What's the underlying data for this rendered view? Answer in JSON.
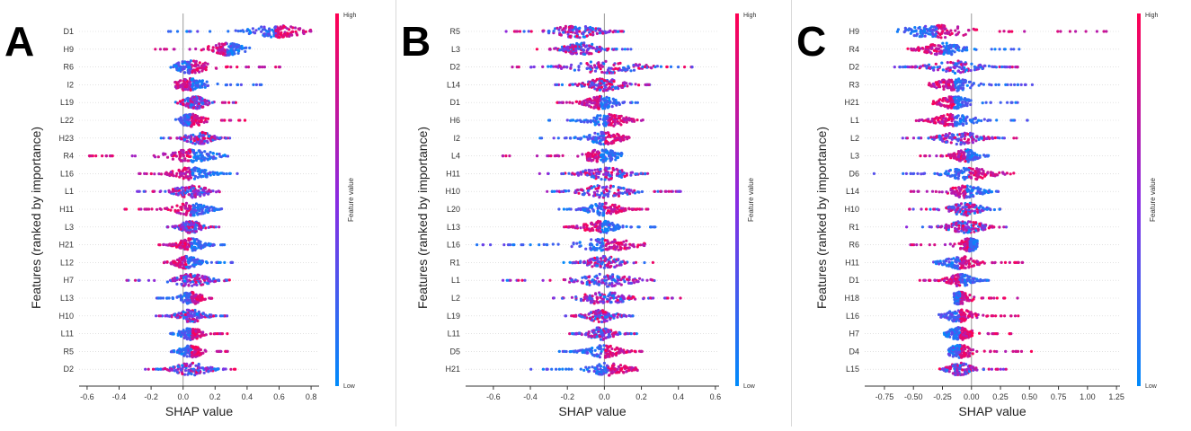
{
  "colors": {
    "high": "#ff0052",
    "low": "#008bfb",
    "mid": "#8a2be2",
    "axis": "#333333",
    "zero_line": "#999999"
  },
  "chart_data": [
    {
      "type": "scatter",
      "subtype": "shap-beeswarm",
      "panel_label": "A",
      "xlabel": "SHAP value",
      "ylabel": "Features (ranked by importance)",
      "xlim": [
        -0.65,
        0.85
      ],
      "xticks": [
        -0.6,
        -0.4,
        -0.2,
        0.0,
        0.2,
        0.4,
        0.6,
        0.8
      ],
      "xtick_labels": [
        "-0.6",
        "-0.4",
        "-0.2",
        "0.0",
        "0.2",
        "0.4",
        "0.6",
        "0.8"
      ],
      "colorbar": {
        "title": "Feature value",
        "high_label": "High",
        "low_label": "Low"
      },
      "features": [
        {
          "name": "D1",
          "min": -0.12,
          "max": 0.82,
          "mode": 0.58,
          "pattern": "lowneg"
        },
        {
          "name": "H9",
          "min": -0.2,
          "max": 0.42,
          "mode": 0.27,
          "pattern": "highneg"
        },
        {
          "name": "R6",
          "min": -0.08,
          "max": 0.62,
          "mode": 0.05,
          "pattern": "lowneg"
        },
        {
          "name": "I2",
          "min": -0.05,
          "max": 0.55,
          "mode": 0.05,
          "pattern": "highneg"
        },
        {
          "name": "L19",
          "min": -0.05,
          "max": 0.35,
          "mode": 0.08,
          "pattern": "mixed"
        },
        {
          "name": "L22",
          "min": -0.05,
          "max": 0.4,
          "mode": 0.05,
          "pattern": "lowneg"
        },
        {
          "name": "H23",
          "min": -0.15,
          "max": 0.3,
          "mode": 0.1,
          "pattern": "mixed"
        },
        {
          "name": "R4",
          "min": -0.6,
          "max": 0.3,
          "mode": 0.05,
          "pattern": "highneg"
        },
        {
          "name": "L16",
          "min": -0.3,
          "max": 0.35,
          "mode": 0.05,
          "pattern": "highneg"
        },
        {
          "name": "L1",
          "min": -0.3,
          "max": 0.28,
          "mode": 0.05,
          "pattern": "mixed"
        },
        {
          "name": "H11",
          "min": -0.38,
          "max": 0.25,
          "mode": 0.05,
          "pattern": "highneg"
        },
        {
          "name": "L3",
          "min": -0.1,
          "max": 0.25,
          "mode": 0.05,
          "pattern": "mixed"
        },
        {
          "name": "H21",
          "min": -0.18,
          "max": 0.28,
          "mode": 0.05,
          "pattern": "highneg"
        },
        {
          "name": "L12",
          "min": -0.12,
          "max": 0.33,
          "mode": 0.02,
          "pattern": "highneg"
        },
        {
          "name": "H7",
          "min": -0.38,
          "max": 0.3,
          "mode": 0.05,
          "pattern": "mixed"
        },
        {
          "name": "L13",
          "min": -0.18,
          "max": 0.18,
          "mode": 0.05,
          "pattern": "lowneg"
        },
        {
          "name": "H10",
          "min": -0.18,
          "max": 0.28,
          "mode": 0.05,
          "pattern": "mixed"
        },
        {
          "name": "L11",
          "min": -0.08,
          "max": 0.28,
          "mode": 0.05,
          "pattern": "lowneg"
        },
        {
          "name": "R5",
          "min": -0.08,
          "max": 0.28,
          "mode": 0.05,
          "pattern": "lowneg"
        },
        {
          "name": "D2",
          "min": -0.25,
          "max": 0.33,
          "mode": 0.05,
          "pattern": "mixed"
        }
      ]
    },
    {
      "type": "scatter",
      "subtype": "shap-beeswarm",
      "panel_label": "B",
      "xlabel": "SHAP value",
      "ylabel": "Features (ranked by importance)",
      "xlim": [
        -0.75,
        0.62
      ],
      "xticks": [
        -0.6,
        -0.4,
        -0.2,
        0.0,
        0.2,
        0.4,
        0.6
      ],
      "xtick_labels": [
        "-0.6",
        "-0.4",
        "-0.2",
        "0.0",
        "0.2",
        "0.4",
        "0.6"
      ],
      "colorbar": {
        "title": "Feature value",
        "high_label": "High",
        "low_label": "Low"
      },
      "features": [
        {
          "name": "R5",
          "min": -0.55,
          "max": 0.12,
          "mode": -0.15,
          "pattern": "mixed"
        },
        {
          "name": "L3",
          "min": -0.38,
          "max": 0.15,
          "mode": -0.12,
          "pattern": "mixed"
        },
        {
          "name": "D2",
          "min": -0.55,
          "max": 0.55,
          "mode": 0.0,
          "pattern": "mixed"
        },
        {
          "name": "L14",
          "min": -0.3,
          "max": 0.25,
          "mode": 0.0,
          "pattern": "mixed"
        },
        {
          "name": "D1",
          "min": -0.3,
          "max": 0.18,
          "mode": -0.02,
          "pattern": "highneg"
        },
        {
          "name": "H6",
          "min": -0.38,
          "max": 0.22,
          "mode": 0.02,
          "pattern": "lowneg"
        },
        {
          "name": "I2",
          "min": -0.38,
          "max": 0.15,
          "mode": 0.0,
          "pattern": "lowneg"
        },
        {
          "name": "L4",
          "min": -0.55,
          "max": 0.1,
          "mode": -0.02,
          "pattern": "highneg"
        },
        {
          "name": "H11",
          "min": -0.38,
          "max": 0.25,
          "mode": 0.0,
          "pattern": "mixed"
        },
        {
          "name": "H10",
          "min": -0.32,
          "max": 0.42,
          "mode": 0.0,
          "pattern": "mixed"
        },
        {
          "name": "L20",
          "min": -0.25,
          "max": 0.25,
          "mode": 0.0,
          "pattern": "lowneg"
        },
        {
          "name": "L13",
          "min": -0.22,
          "max": 0.28,
          "mode": -0.02,
          "pattern": "highneg"
        },
        {
          "name": "L16",
          "min": -0.72,
          "max": 0.22,
          "mode": 0.0,
          "pattern": "lowneg"
        },
        {
          "name": "R1",
          "min": -0.22,
          "max": 0.28,
          "mode": 0.0,
          "pattern": "mixed"
        },
        {
          "name": "L1",
          "min": -0.6,
          "max": 0.28,
          "mode": 0.0,
          "pattern": "mixed"
        },
        {
          "name": "L2",
          "min": -0.28,
          "max": 0.42,
          "mode": 0.0,
          "pattern": "mixed"
        },
        {
          "name": "L19",
          "min": -0.22,
          "max": 0.2,
          "mode": -0.02,
          "pattern": "mixed"
        },
        {
          "name": "L11",
          "min": -0.2,
          "max": 0.18,
          "mode": -0.02,
          "pattern": "mixed"
        },
        {
          "name": "D5",
          "min": -0.25,
          "max": 0.25,
          "mode": 0.0,
          "pattern": "lowneg"
        },
        {
          "name": "H21",
          "min": -0.45,
          "max": 0.18,
          "mode": 0.02,
          "pattern": "lowneg"
        }
      ]
    },
    {
      "type": "scatter",
      "subtype": "shap-beeswarm",
      "panel_label": "C",
      "xlabel": "SHAP value",
      "ylabel": "Features (ranked by importance)",
      "xlim": [
        -0.92,
        1.28
      ],
      "xticks": [
        -0.75,
        -0.5,
        -0.25,
        0.0,
        0.25,
        0.5,
        0.75,
        1.0,
        1.25
      ],
      "xtick_labels": [
        "-0.75",
        "-0.50",
        "-0.25",
        "0.00",
        "0.25",
        "0.50",
        "0.75",
        "1.00",
        "1.25"
      ],
      "colorbar": {
        "title": "Feature value",
        "high_label": "High",
        "low_label": "Low"
      },
      "features": [
        {
          "name": "H9",
          "min": -0.65,
          "max": 1.2,
          "mode": -0.3,
          "pattern": "lowneg"
        },
        {
          "name": "R4",
          "min": -0.55,
          "max": 0.45,
          "mode": -0.25,
          "pattern": "highneg"
        },
        {
          "name": "D2",
          "min": -0.7,
          "max": 0.45,
          "mode": -0.15,
          "pattern": "mixed"
        },
        {
          "name": "R3",
          "min": -0.4,
          "max": 0.55,
          "mode": -0.15,
          "pattern": "highneg"
        },
        {
          "name": "H21",
          "min": -0.35,
          "max": 0.4,
          "mode": -0.15,
          "pattern": "highneg"
        },
        {
          "name": "L1",
          "min": -0.5,
          "max": 0.5,
          "mode": -0.15,
          "pattern": "highneg"
        },
        {
          "name": "L2",
          "min": -0.6,
          "max": 0.4,
          "mode": -0.1,
          "pattern": "mixed"
        },
        {
          "name": "L3",
          "min": -0.45,
          "max": 0.15,
          "mode": -0.05,
          "pattern": "highneg"
        },
        {
          "name": "D6",
          "min": -0.85,
          "max": 0.4,
          "mode": -0.02,
          "pattern": "lowneg"
        },
        {
          "name": "L14",
          "min": -0.55,
          "max": 0.25,
          "mode": -0.05,
          "pattern": "highneg"
        },
        {
          "name": "H10",
          "min": -0.55,
          "max": 0.25,
          "mode": -0.05,
          "pattern": "mixed"
        },
        {
          "name": "R1",
          "min": -0.6,
          "max": 0.3,
          "mode": -0.05,
          "pattern": "mixed"
        },
        {
          "name": "R6",
          "min": -0.55,
          "max": 0.05,
          "mode": -0.02,
          "pattern": "highneg"
        },
        {
          "name": "H11",
          "min": -0.35,
          "max": 0.45,
          "mode": -0.1,
          "pattern": "lowneg"
        },
        {
          "name": "D1",
          "min": -0.45,
          "max": 0.15,
          "mode": -0.1,
          "pattern": "highneg"
        },
        {
          "name": "H18",
          "min": -0.15,
          "max": 0.4,
          "mode": -0.1,
          "pattern": "lowneg"
        },
        {
          "name": "L16",
          "min": -0.3,
          "max": 0.45,
          "mode": -0.1,
          "pattern": "lowneg"
        },
        {
          "name": "H7",
          "min": -0.25,
          "max": 0.4,
          "mode": -0.1,
          "pattern": "lowneg"
        },
        {
          "name": "D4",
          "min": -0.2,
          "max": 0.6,
          "mode": -0.1,
          "pattern": "lowneg"
        },
        {
          "name": "L15",
          "min": -0.3,
          "max": 0.3,
          "mode": -0.1,
          "pattern": "mixed"
        }
      ]
    }
  ]
}
